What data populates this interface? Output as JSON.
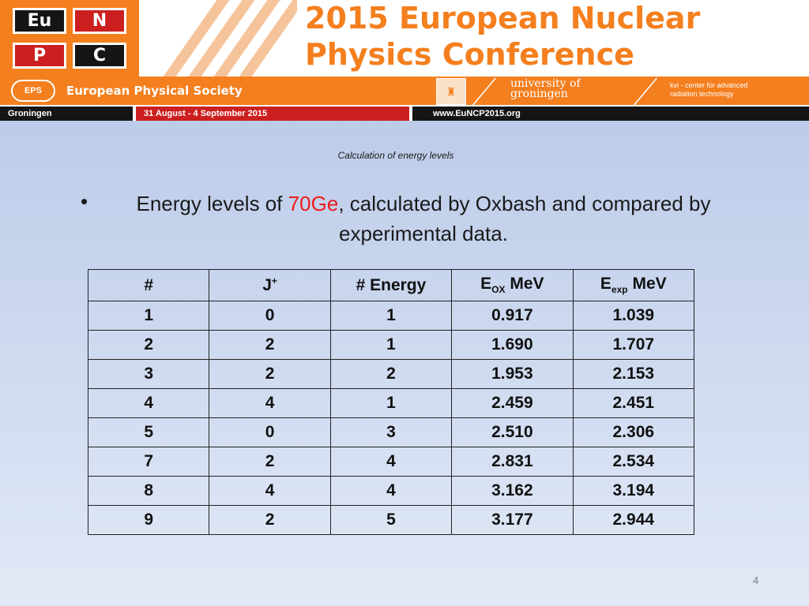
{
  "banner": {
    "logo": [
      "Eu",
      "N",
      "P",
      "C"
    ],
    "title_line1": "2015 European Nuclear",
    "title_line2": "Physics Conference",
    "eps_icon_text": "EPS",
    "society": "European Physical Society",
    "university_line1": "university of",
    "university_line2": "groningen",
    "kvi_line1": "kvi - center for advanced",
    "kvi_line2": "radiation technology",
    "city": "Groningen",
    "dates": "31 August - 4 September 2015",
    "website": "www.EuNCP2015.org",
    "colors": {
      "orange": "#f47f1e",
      "red": "#cc1f1f",
      "dark": "#151515"
    }
  },
  "slide": {
    "subtitle": "Calculation of energy levels",
    "bullet_symbol": "•",
    "bullet_prefix": "Energy levels of ",
    "bullet_highlight": "70Ge",
    "bullet_suffix": ", calculated by Oxbash and compared by experimental data.",
    "highlight_color": "#ee1c1c",
    "page_number": "4"
  },
  "table": {
    "headers": {
      "index": "#",
      "j_main": "J",
      "j_sup": "+",
      "energy": "# Energy",
      "eox_main": "E",
      "eox_sub": "OX",
      "eox_unit": " MeV",
      "eexp_main": "E",
      "eexp_sub": "exp",
      "eexp_unit": " MeV"
    },
    "rows": [
      [
        "1",
        "0",
        "1",
        "0.917",
        "1.039"
      ],
      [
        "2",
        "2",
        "1",
        "1.690",
        "1.707"
      ],
      [
        "3",
        "2",
        "2",
        "1.953",
        "2.153"
      ],
      [
        "4",
        "4",
        "1",
        "2.459",
        "2.451"
      ],
      [
        "5",
        "0",
        "3",
        "2.510",
        "2.306"
      ],
      [
        "7",
        "2",
        "4",
        "2.831",
        "2.534"
      ],
      [
        "8",
        "4",
        "4",
        "3.162",
        "3.194"
      ],
      [
        "9",
        "2",
        "5",
        "3.177",
        "2.944"
      ]
    ]
  }
}
